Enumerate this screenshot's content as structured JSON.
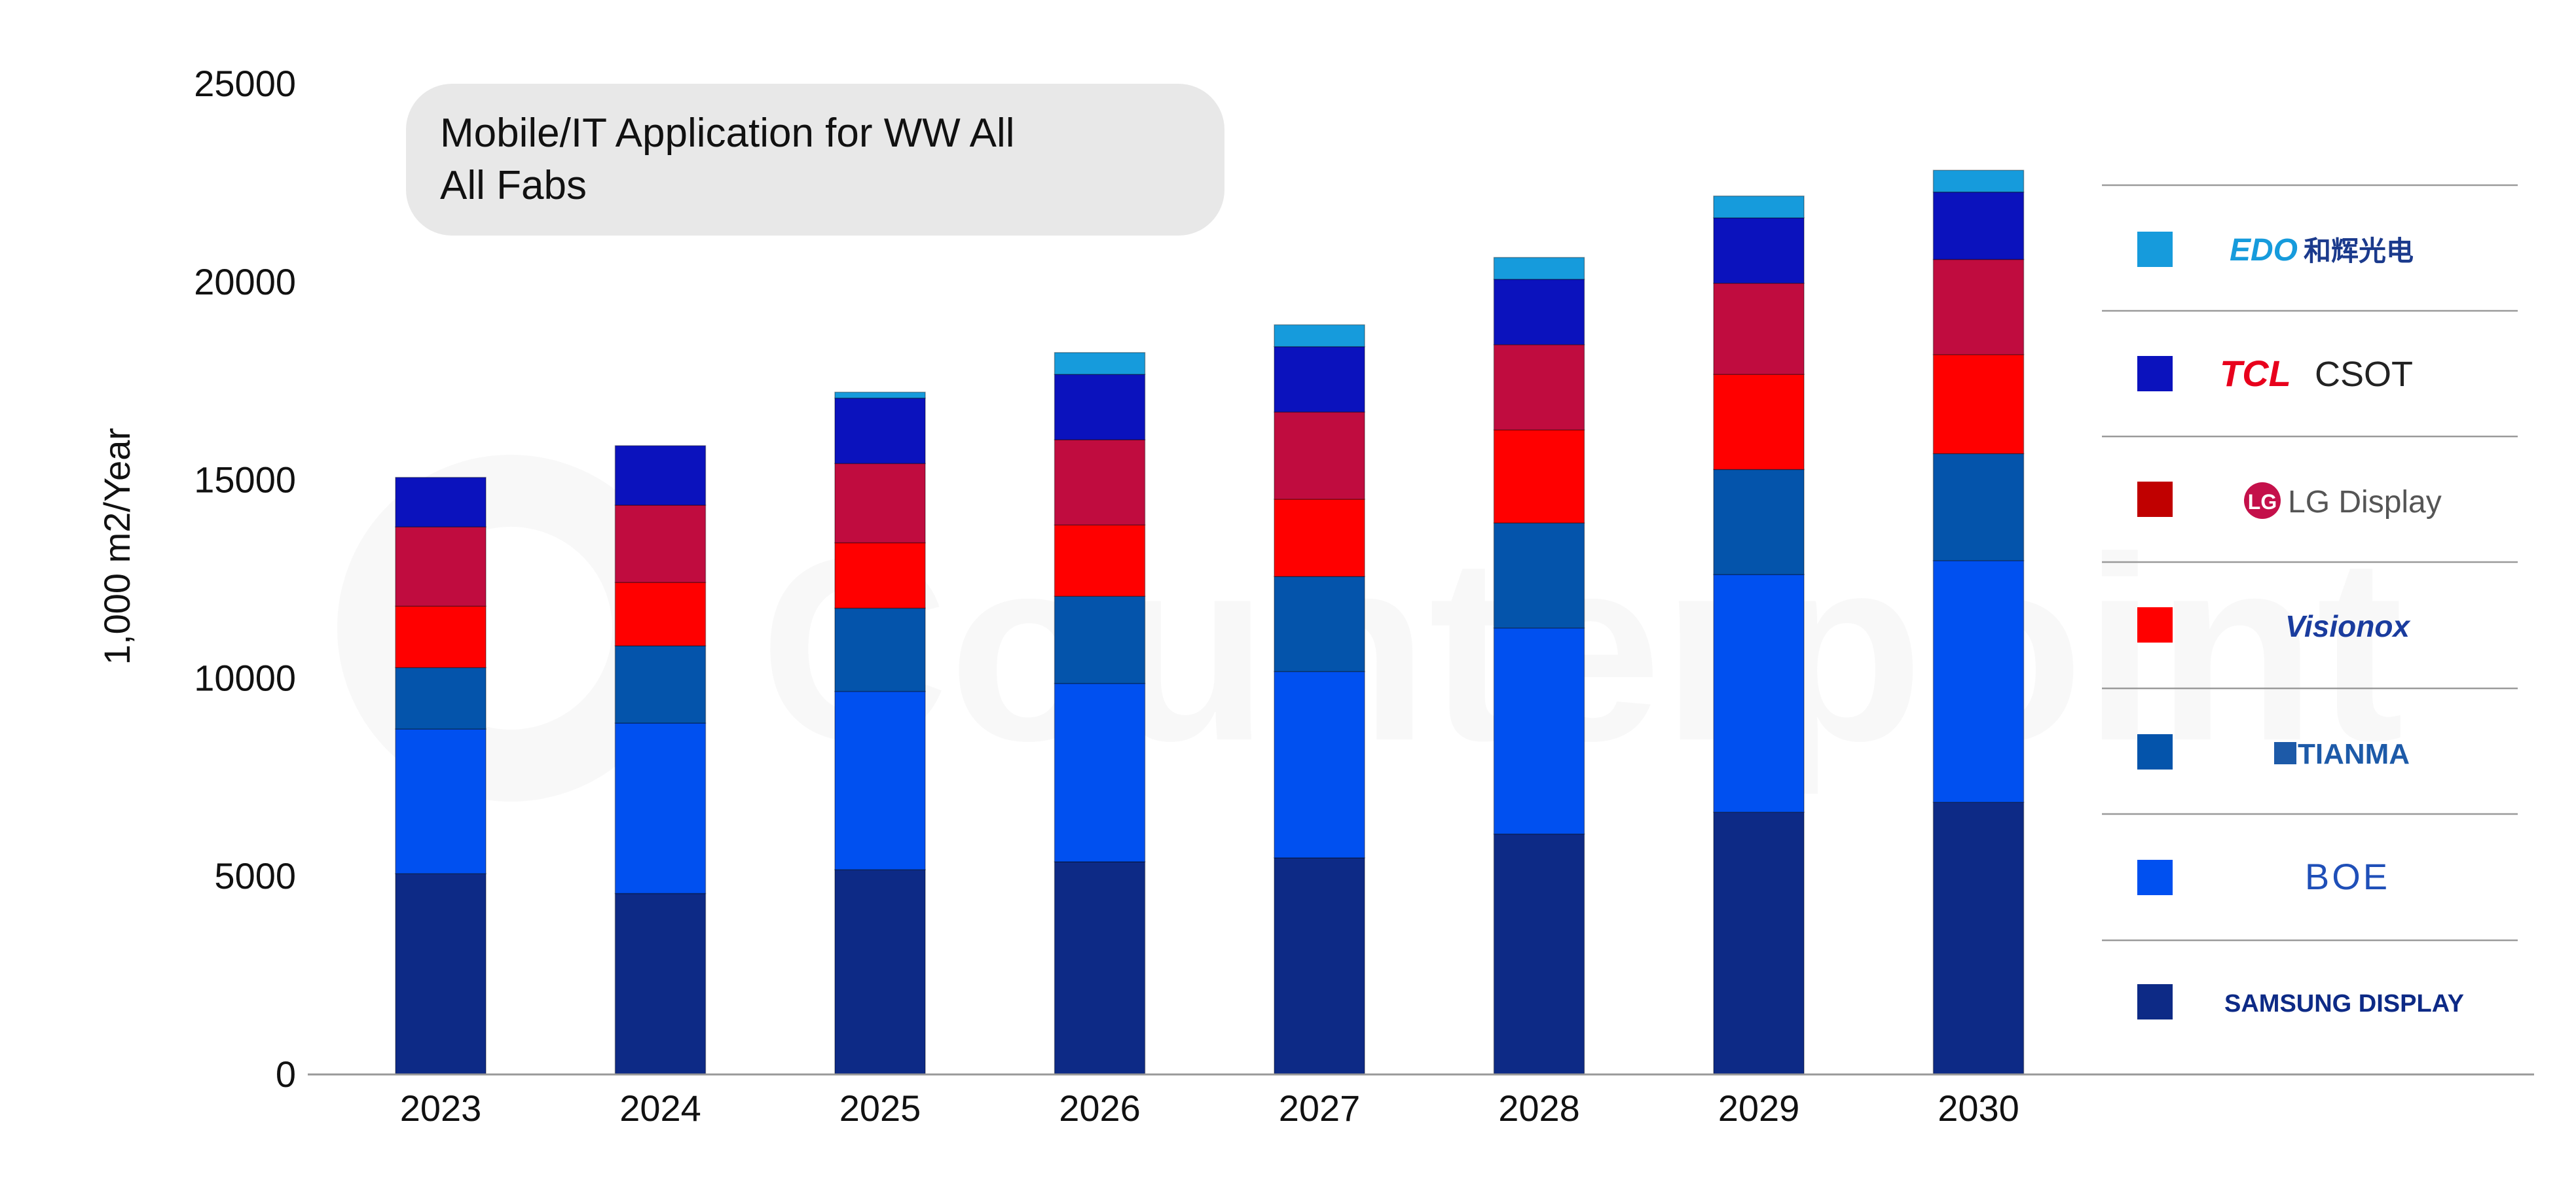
{
  "chart_data": {
    "type": "bar",
    "stacked": true,
    "title_lines": [
      "Mobile/IT Application for WW All",
      "All Fabs"
    ],
    "xlabel": "",
    "ylabel": "1,000 m2/Year",
    "ylim": [
      0,
      25000
    ],
    "yticks": [
      0,
      5000,
      10000,
      15000,
      20000,
      25000
    ],
    "grid": false,
    "legend_position": "right",
    "watermark": "Counterpoint",
    "categories": [
      "2023",
      "2024",
      "2025",
      "2026",
      "2027",
      "2028",
      "2029",
      "2030"
    ],
    "series": [
      {
        "name": "SAMSUNG DISPLAY",
        "color": "#0d2a86",
        "values": [
          5050,
          4550,
          5150,
          5350,
          5450,
          6050,
          6600,
          6850
        ]
      },
      {
        "name": "BOE",
        "color": "#0050f0",
        "values": [
          3650,
          4300,
          4500,
          4500,
          4700,
          5200,
          6000,
          6100
        ]
      },
      {
        "name": "TIANMA",
        "color": "#0454ab",
        "values": [
          1550,
          1950,
          2100,
          2200,
          2400,
          2650,
          2650,
          2700
        ]
      },
      {
        "name": "Visionox",
        "color": "#ff0000",
        "values": [
          1550,
          1600,
          1650,
          1800,
          1950,
          2350,
          2400,
          2500
        ]
      },
      {
        "name": "LG Display",
        "color": "#c00c3f",
        "values": [
          2000,
          1950,
          2000,
          2150,
          2200,
          2150,
          2300,
          2400
        ]
      },
      {
        "name": "TCL CSOT",
        "color": "#0b12bd",
        "values": [
          1250,
          1500,
          1650,
          1650,
          1650,
          1650,
          1650,
          1700
        ]
      },
      {
        "name": "和辉光电",
        "color": "#169bdc",
        "values": [
          0,
          0,
          150,
          550,
          550,
          550,
          550,
          550
        ]
      }
    ],
    "legend_order": [
      "和辉光电",
      "TCL CSOT",
      "LG Display",
      "Visionox",
      "TIANMA",
      "BOE",
      "SAMSUNG DISPLAY"
    ]
  },
  "legend_labels": {
    "edo": {
      "logo": "EDO",
      "text": "和辉光电"
    },
    "tcl": {
      "logo": "TCL",
      "text": "CSOT"
    },
    "lgd": {
      "logo": "LG",
      "text": "LG Display"
    },
    "visionox": {
      "text": "Visionox"
    },
    "tianma": {
      "text": "TIANMA"
    },
    "boe": {
      "text": "BOE"
    },
    "samsung": {
      "text": "SAMSUNG DISPLAY"
    }
  }
}
